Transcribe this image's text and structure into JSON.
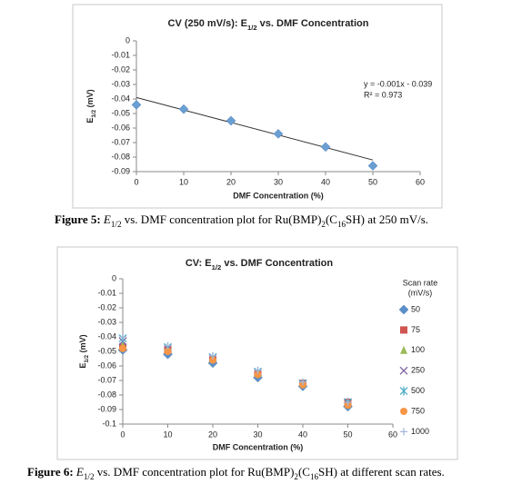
{
  "chart_data": [
    {
      "type": "scatter",
      "title": [
        {
          "text": "CV (250 mV/s): E",
          "bold": true
        },
        {
          "text": "1/2",
          "sub": true,
          "bold": true
        },
        {
          "text": " vs. DMF Concentration",
          "bold": true
        }
      ],
      "x_label": "DMF Concentration (%)",
      "y_label": [
        {
          "text": "E",
          "bold": true
        },
        {
          "text": "1/2",
          "sub": true,
          "bold": true
        },
        {
          "text": " (mV)",
          "bold": true
        }
      ],
      "x": [
        0,
        10,
        20,
        30,
        40,
        50
      ],
      "values": [
        -0.044,
        -0.047,
        -0.055,
        -0.064,
        -0.073,
        -0.086
      ],
      "color": "#6a9fd4",
      "marker": "diamond",
      "trendline": {
        "x": [
          0,
          50
        ],
        "values": [
          -0.039,
          -0.082
        ],
        "color": "#333333"
      },
      "annotations": [
        "y = -0.001x - 0.039",
        "R² = 0.973"
      ],
      "xlim": [
        0,
        60
      ],
      "xticks": [
        0,
        10,
        20,
        30,
        40,
        50,
        60
      ],
      "ylim": [
        -0.09,
        0
      ],
      "yticks": [
        0,
        -0.01,
        -0.02,
        -0.03,
        -0.04,
        -0.05,
        -0.06,
        -0.07,
        -0.08,
        -0.09
      ],
      "grid": false,
      "caption": [
        {
          "text": "Figure 5:",
          "bold": true
        },
        {
          "text": " E",
          "italic": true
        },
        {
          "text": "1/2",
          "sub": true
        },
        {
          "text": " vs. DMF concentration plot for Ru(BMP)"
        },
        {
          "text": "2",
          "sub": true
        },
        {
          "text": "(C"
        },
        {
          "text": "16",
          "sub": true
        },
        {
          "text": "SH) at 250 mV/s."
        }
      ]
    },
    {
      "type": "scatter",
      "title": [
        {
          "text": "CV: E",
          "bold": true
        },
        {
          "text": "1/2",
          "sub": true,
          "bold": true
        },
        {
          "text": " vs. DMF Concentration",
          "bold": true
        }
      ],
      "x_label": "DMF Concentration (%)",
      "y_label": [
        {
          "text": "E",
          "bold": true
        },
        {
          "text": "1/2",
          "sub": true,
          "bold": true
        },
        {
          "text": " (mV)",
          "bold": true
        }
      ],
      "legend_title": [
        "Scan rate",
        "(mV/s)"
      ],
      "legend": "right",
      "x": [
        0,
        10,
        20,
        30,
        40,
        50
      ],
      "series": [
        {
          "name": "50",
          "color": "#5b8fc9",
          "marker": "diamond",
          "values": [
            -0.049,
            -0.052,
            -0.058,
            -0.068,
            -0.074,
            -0.088
          ]
        },
        {
          "name": "75",
          "color": "#d0544f",
          "marker": "square",
          "values": [
            -0.047,
            -0.049,
            -0.055,
            -0.065,
            -0.072,
            -0.085
          ]
        },
        {
          "name": "100",
          "color": "#9bbb59",
          "marker": "triangle",
          "values": [
            -0.046,
            -0.048,
            -0.055,
            -0.065,
            -0.072,
            -0.086
          ]
        },
        {
          "name": "250",
          "color": "#7e62a1",
          "marker": "x",
          "values": [
            -0.043,
            -0.048,
            -0.054,
            -0.064,
            -0.072,
            -0.085
          ]
        },
        {
          "name": "500",
          "color": "#4bacc6",
          "marker": "star",
          "values": [
            -0.041,
            -0.047,
            -0.054,
            -0.064,
            -0.072,
            -0.085
          ]
        },
        {
          "name": "750",
          "color": "#f79646",
          "marker": "circle",
          "values": [
            -0.048,
            -0.05,
            -0.056,
            -0.066,
            -0.073,
            -0.087
          ]
        },
        {
          "name": "1000",
          "color": "#a5b8d8",
          "marker": "plus",
          "values": [
            -0.04,
            -0.046,
            -0.053,
            -0.063,
            -0.071,
            -0.085
          ]
        }
      ],
      "xlim": [
        0,
        60
      ],
      "xticks": [
        0,
        10,
        20,
        30,
        40,
        50,
        60
      ],
      "ylim": [
        -0.1,
        0
      ],
      "yticks": [
        0,
        -0.01,
        -0.02,
        -0.03,
        -0.04,
        -0.05,
        -0.06,
        -0.07,
        -0.08,
        -0.09,
        -0.1
      ],
      "grid": false,
      "caption": [
        {
          "text": "Figure 6:",
          "bold": true
        },
        {
          "text": " E",
          "italic": true
        },
        {
          "text": "1/2",
          "sub": true
        },
        {
          "text": " vs. DMF concentration plot for Ru(BMP)"
        },
        {
          "text": "2",
          "sub": true
        },
        {
          "text": "(C"
        },
        {
          "text": "16",
          "sub": true
        },
        {
          "text": "SH) at different scan rates."
        }
      ]
    }
  ]
}
